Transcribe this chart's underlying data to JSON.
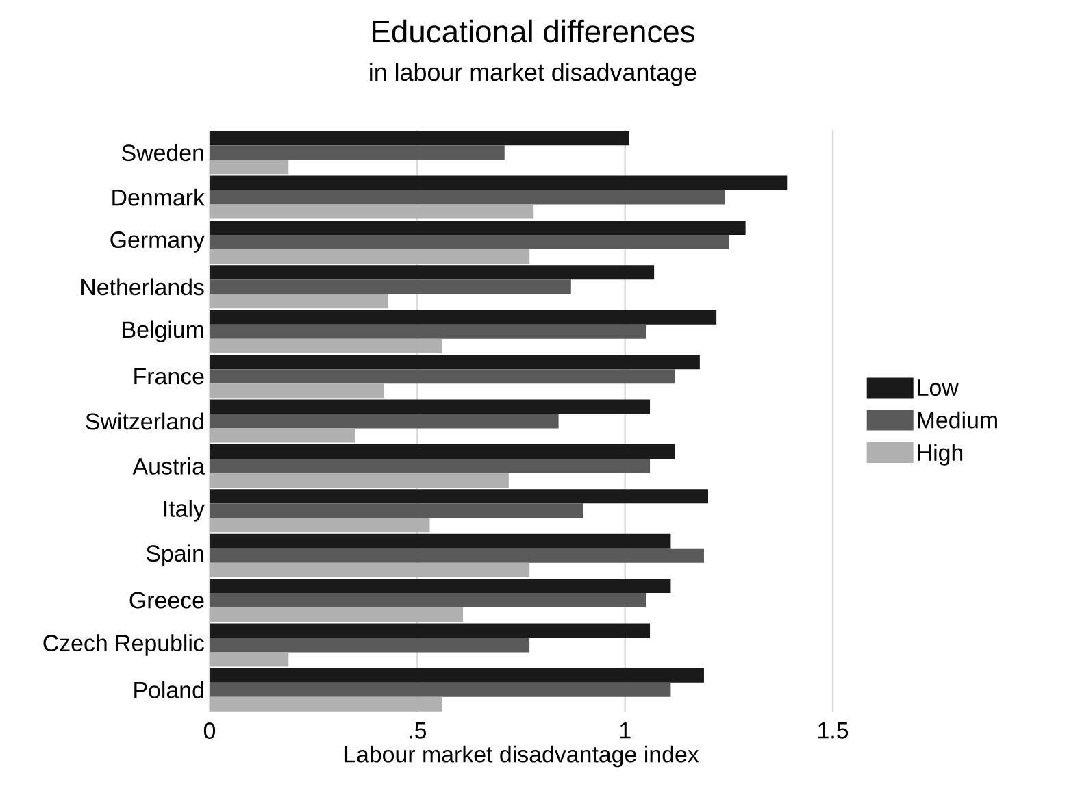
{
  "chart_data": {
    "type": "bar",
    "orientation": "horizontal",
    "title": "Educational differences",
    "subtitle": "in labour market disadvantage",
    "xlabel": "Labour market disadvantage index",
    "categories": [
      "Sweden",
      "Denmark",
      "Germany",
      "Netherlands",
      "Belgium",
      "France",
      "Switzerland",
      "Austria",
      "Italy",
      "Spain",
      "Greece",
      "Czech Republic",
      "Poland"
    ],
    "series": [
      {
        "name": "Low",
        "color": "#1a1a1a",
        "values": [
          1.01,
          1.39,
          1.29,
          1.07,
          1.22,
          1.18,
          1.06,
          1.12,
          1.2,
          1.11,
          1.11,
          1.06,
          1.19
        ]
      },
      {
        "name": "Medium",
        "color": "#5a5a5a",
        "values": [
          0.71,
          1.24,
          1.25,
          0.87,
          1.05,
          1.12,
          0.84,
          1.06,
          0.9,
          1.19,
          1.05,
          0.77,
          1.11
        ]
      },
      {
        "name": "High",
        "color": "#b0b0b0",
        "values": [
          0.19,
          0.78,
          0.77,
          0.43,
          0.56,
          0.42,
          0.35,
          0.72,
          0.53,
          0.77,
          0.61,
          0.19,
          0.56
        ]
      }
    ],
    "xlim": [
      0,
      1.5
    ],
    "xticks": [
      0,
      {
        "value": 0.5,
        "label": ".5"
      },
      1,
      1.5
    ],
    "grid": "x",
    "legend": "right"
  }
}
